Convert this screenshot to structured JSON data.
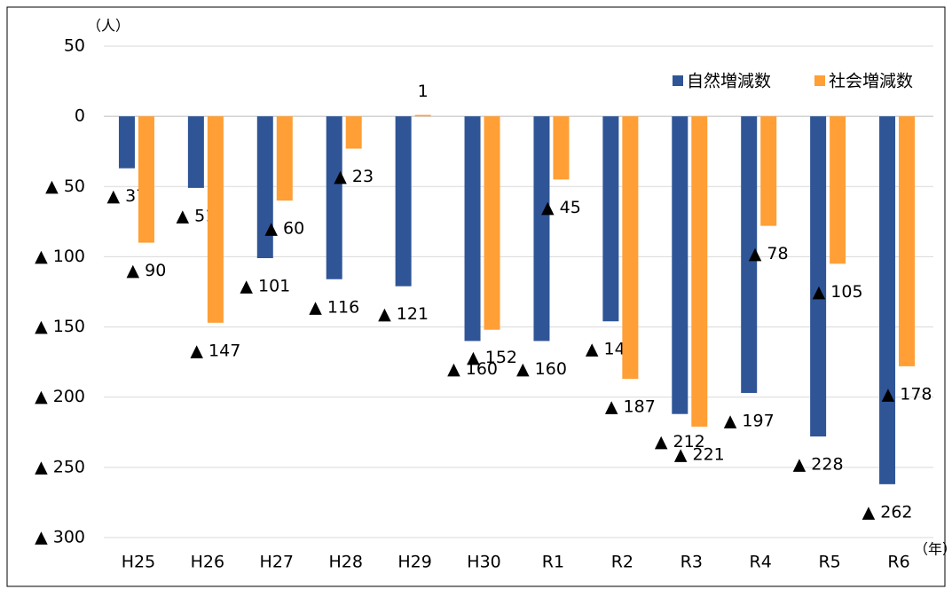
{
  "chart_data": {
    "type": "bar",
    "y_unit": "（人）",
    "x_unit": "（年）",
    "categories": [
      "H25",
      "H26",
      "H27",
      "H28",
      "H29",
      "H30",
      "R1",
      "R2",
      "R3",
      "R4",
      "R5",
      "R6"
    ],
    "series": [
      {
        "name": "自然増減数",
        "color": "#2f5597",
        "values": [
          -37,
          -51,
          -101,
          -116,
          -121,
          -160,
          -160,
          -146,
          -212,
          -197,
          -228,
          -262
        ],
        "value_labels": [
          "▲ 37",
          "▲ 51",
          "▲ 101",
          "▲ 116",
          "▲ 121",
          "▲ 160",
          "▲ 160",
          "▲ 146",
          "▲ 212",
          "▲ 197",
          "▲ 228",
          "▲ 262"
        ]
      },
      {
        "name": "社会増減数",
        "color": "#ff9f35",
        "values": [
          -90,
          -147,
          -60,
          -23,
          1,
          -152,
          -45,
          -187,
          -221,
          -78,
          -105,
          -178
        ],
        "value_labels": [
          "▲ 90",
          "▲ 147",
          "▲ 60",
          "▲ 23",
          "1",
          "▲ 152",
          "▲ 45",
          "▲ 187",
          "▲ 221",
          "▲ 78",
          "▲ 105",
          "▲ 178"
        ]
      }
    ],
    "ylim": [
      -300,
      50
    ],
    "yticks": [
      50,
      0,
      {
        "value": -50,
        "label": "▲ 50"
      },
      {
        "value": -100,
        "label": "▲ 100"
      },
      {
        "value": -150,
        "label": "▲ 150"
      },
      {
        "value": -200,
        "label": "▲ 200"
      },
      {
        "value": -250,
        "label": "▲ 250"
      },
      {
        "value": -300,
        "label": "▲ 300"
      }
    ],
    "grid": true,
    "legend": "top-right"
  }
}
